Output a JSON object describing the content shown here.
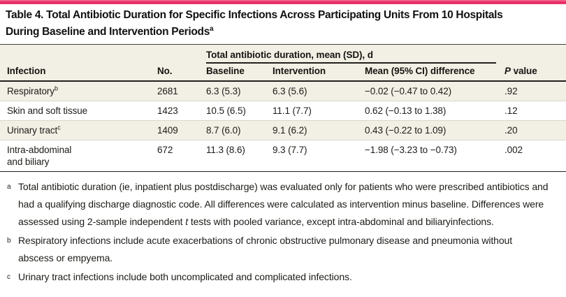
{
  "colors": {
    "accent_bar": "#e7275f",
    "header_band": "#f2efe5",
    "row_stripe": "#f2efe5",
    "row_alt": "#ffffff",
    "rule_dark": "#21211c",
    "row_separator": "#d9d6c9"
  },
  "title": {
    "line1": "Table 4. Total Antibiotic Duration for Specific Infections Across Participating Units From 10 Hospitals",
    "line2": "During Baseline and Intervention Periods",
    "sup": "a"
  },
  "table": {
    "spanner_label": "Total antibiotic duration, mean (SD), d",
    "headers": {
      "infection": "Infection",
      "no": "No.",
      "baseline": "Baseline",
      "intervention": "Intervention",
      "difference": "Mean (95% CI) difference",
      "p_italic": "P",
      "p_rest": " value"
    },
    "rows": [
      {
        "infection_lines": [
          "Respiratory"
        ],
        "infection_sup": "b",
        "no": "2681",
        "baseline": "6.3 (5.3)",
        "intervention": "6.3 (5.6)",
        "difference": "−0.02 (−0.47 to 0.42)",
        "p_value": ".92"
      },
      {
        "infection_lines": [
          "Skin and soft tissue"
        ],
        "infection_sup": "",
        "no": "1423",
        "baseline": "10.5 (6.5)",
        "intervention": "11.1 (7.7)",
        "difference": "0.62 (−0.13 to 1.38)",
        "p_value": ".12"
      },
      {
        "infection_lines": [
          "Urinary tract"
        ],
        "infection_sup": "c",
        "no": "1409",
        "baseline": "8.7 (6.0)",
        "intervention": "9.1 (6.2)",
        "difference": "0.43 (−0.22 to 1.09)",
        "p_value": ".20"
      },
      {
        "infection_lines": [
          "Intra-abdominal",
          "and biliary"
        ],
        "infection_sup": "",
        "no": "672",
        "baseline": "11.3 (8.6)",
        "intervention": "9.3 (7.7)",
        "difference": "−1.98 (−3.23 to −0.73)",
        "p_value": ".002"
      }
    ]
  },
  "footnotes": [
    {
      "marker": "a",
      "segments": [
        {
          "text": "Total antibiotic duration (ie, inpatient plus postdischarge) was evaluated only for patients who were prescribed antibiotics and had a qualifying discharge diagnostic code. All differences were calculated as intervention minus baseline. Differences were assessed using 2-sample independent "
        },
        {
          "text": "t",
          "italic": true
        },
        {
          "text": " tests with pooled variance, except intra-abdominal and biliaryinfections."
        }
      ]
    },
    {
      "marker": "b",
      "segments": [
        {
          "text": "Respiratory infections include acute exacerbations of chronic obstructive pulmonary disease and pneumonia without abscess or empyema."
        }
      ]
    },
    {
      "marker": "c",
      "segments": [
        {
          "text": "Urinary tract infections include both uncomplicated and complicated infections."
        }
      ]
    }
  ]
}
